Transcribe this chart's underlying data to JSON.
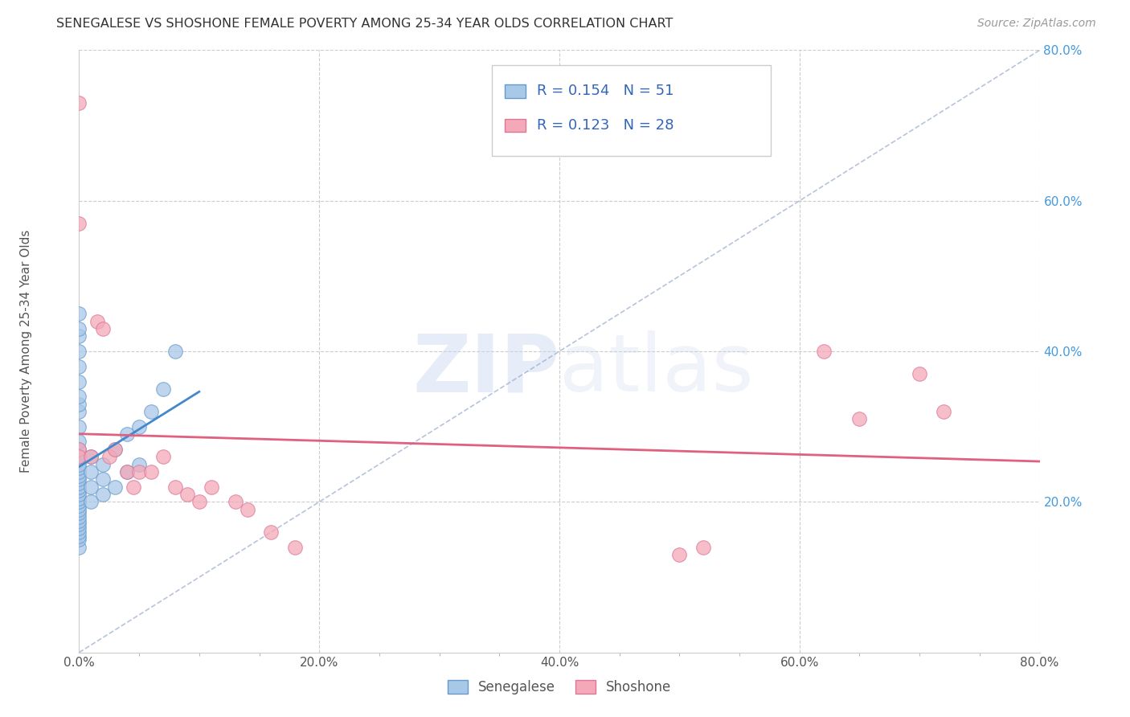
{
  "title": "SENEGALESE VS SHOSHONE FEMALE POVERTY AMONG 25-34 YEAR OLDS CORRELATION CHART",
  "source": "Source: ZipAtlas.com",
  "ylabel": "Female Poverty Among 25-34 Year Olds",
  "xlim": [
    0.0,
    0.8
  ],
  "ylim": [
    0.0,
    0.8
  ],
  "xtick_major_vals": [
    0.0,
    0.2,
    0.4,
    0.6,
    0.8
  ],
  "xtick_minor_vals": [
    0.05,
    0.1,
    0.15,
    0.25,
    0.3,
    0.35,
    0.45,
    0.5,
    0.55,
    0.65,
    0.7,
    0.75
  ],
  "ytick_vals": [
    0.2,
    0.4,
    0.6,
    0.8
  ],
  "background_color": "#ffffff",
  "grid_color": "#cccccc",
  "senegalese_R": 0.154,
  "senegalese_N": 51,
  "shoshone_R": 0.123,
  "shoshone_N": 28,
  "senegalese_color": "#a8c8e8",
  "shoshone_color": "#f4a8b8",
  "senegalese_edge": "#6699cc",
  "shoshone_edge": "#dd7799",
  "senegalese_reg_color": "#4488cc",
  "shoshone_reg_color": "#e06080",
  "diagonal_color": "#99aaccaa",
  "legend_senegalese_label": "Senegalese",
  "legend_shoshone_label": "Shoshone",
  "senegalese_x": [
    0.0,
    0.0,
    0.0,
    0.0,
    0.0,
    0.0,
    0.0,
    0.0,
    0.0,
    0.0,
    0.0,
    0.0,
    0.0,
    0.0,
    0.0,
    0.0,
    0.0,
    0.0,
    0.0,
    0.0,
    0.0,
    0.0,
    0.0,
    0.0,
    0.0,
    0.0,
    0.0,
    0.0,
    0.0,
    0.0,
    0.0,
    0.0,
    0.0,
    0.0,
    0.0,
    0.01,
    0.01,
    0.01,
    0.01,
    0.02,
    0.02,
    0.02,
    0.03,
    0.03,
    0.04,
    0.04,
    0.05,
    0.05,
    0.06,
    0.07,
    0.08
  ],
  "senegalese_y": [
    0.14,
    0.15,
    0.155,
    0.16,
    0.165,
    0.17,
    0.175,
    0.18,
    0.185,
    0.19,
    0.195,
    0.2,
    0.205,
    0.21,
    0.215,
    0.22,
    0.225,
    0.23,
    0.235,
    0.24,
    0.245,
    0.25,
    0.26,
    0.27,
    0.28,
    0.3,
    0.32,
    0.33,
    0.34,
    0.36,
    0.38,
    0.4,
    0.42,
    0.43,
    0.45,
    0.2,
    0.22,
    0.24,
    0.26,
    0.21,
    0.23,
    0.25,
    0.22,
    0.27,
    0.24,
    0.29,
    0.25,
    0.3,
    0.32,
    0.35,
    0.4
  ],
  "shoshone_x": [
    0.0,
    0.0,
    0.0,
    0.0,
    0.01,
    0.015,
    0.02,
    0.025,
    0.03,
    0.04,
    0.045,
    0.05,
    0.06,
    0.07,
    0.08,
    0.09,
    0.1,
    0.11,
    0.13,
    0.14,
    0.16,
    0.18,
    0.5,
    0.52,
    0.62,
    0.65,
    0.7,
    0.72
  ],
  "shoshone_y": [
    0.73,
    0.57,
    0.27,
    0.26,
    0.26,
    0.44,
    0.43,
    0.26,
    0.27,
    0.24,
    0.22,
    0.24,
    0.24,
    0.26,
    0.22,
    0.21,
    0.2,
    0.22,
    0.2,
    0.19,
    0.16,
    0.14,
    0.13,
    0.14,
    0.4,
    0.31,
    0.37,
    0.32
  ]
}
